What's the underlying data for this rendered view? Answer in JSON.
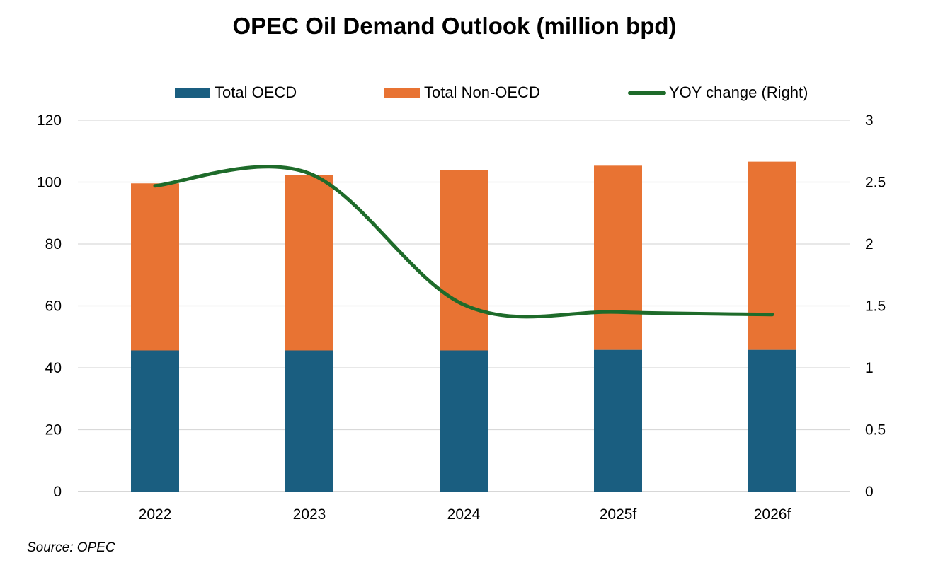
{
  "source": "Source: OPEC",
  "chart_data": {
    "type": "bar",
    "stacked": true,
    "title": "OPEC Oil Demand Outlook (million bpd)",
    "categories": [
      "2022",
      "2023",
      "2024",
      "2025f",
      "2026f"
    ],
    "series": [
      {
        "name": "Total OECD",
        "type": "bar",
        "axis": "left",
        "color": "#1a5e80",
        "values": [
          45.6,
          45.6,
          45.6,
          45.8,
          45.8
        ]
      },
      {
        "name": "Total Non-OECD",
        "type": "bar",
        "axis": "left",
        "color": "#e87333",
        "values": [
          54.0,
          56.6,
          58.2,
          59.5,
          60.8
        ]
      },
      {
        "name": "YOY change (Right)",
        "type": "line",
        "axis": "right",
        "color": "#1e6b2a",
        "values": [
          2.47,
          2.57,
          1.51,
          1.45,
          1.43
        ]
      }
    ],
    "ylim_left": [
      0,
      120
    ],
    "yticks_left": [
      "0",
      "20",
      "40",
      "60",
      "80",
      "100",
      "120"
    ],
    "ylim_right": [
      0,
      3
    ],
    "yticks_right": [
      "0",
      "0.5",
      "1",
      "1.5",
      "2",
      "2.5",
      "3"
    ],
    "grid": true,
    "legend": "top"
  }
}
